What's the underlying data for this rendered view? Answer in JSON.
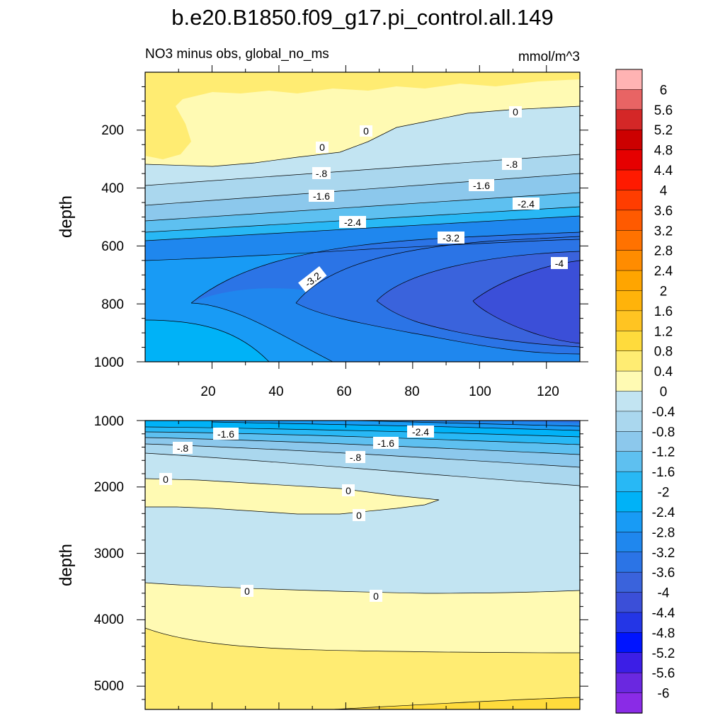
{
  "title": "b.e20.B1850.f09_g17.pi_control.all.149",
  "subtitle_left": "NO3 minus obs, global_no_ms",
  "subtitle_right": "mmol/m^3",
  "chart_data": [
    {
      "type": "contour",
      "panel": "upper",
      "ylabel": "depth",
      "xlim": [
        0,
        130
      ],
      "ylim": [
        1000,
        0
      ],
      "x_ticks": [
        20,
        40,
        60,
        80,
        100,
        120
      ],
      "y_ticks": [
        200,
        400,
        600,
        800,
        1000
      ],
      "contour_labels": [
        "0",
        "0",
        "0",
        "-.8",
        "-.8",
        "-1.6",
        "-1.6",
        "-2.4",
        "-2.4",
        "-3.2",
        "-3.2",
        "-4"
      ]
    },
    {
      "type": "contour",
      "panel": "lower",
      "ylabel": "depth",
      "xlim": [
        0,
        130
      ],
      "ylim": [
        5350,
        1000
      ],
      "y_ticks": [
        1000,
        2000,
        3000,
        4000,
        5000
      ],
      "contour_labels": [
        "-1.6",
        "-2.4",
        "-1.6",
        "-.8",
        "-.8",
        "0",
        "0",
        "0",
        "0",
        "0"
      ]
    }
  ],
  "colorbar": {
    "labels": [
      "6",
      "5.6",
      "5.2",
      "4.8",
      "4.4",
      "4",
      "3.6",
      "3.2",
      "2.8",
      "2.4",
      "2",
      "1.6",
      "1.2",
      "0.8",
      "0.4",
      "0",
      "-0.4",
      "-0.8",
      "-1.2",
      "-1.6",
      "-2",
      "-2.4",
      "-2.8",
      "-3.2",
      "-3.6",
      "-4",
      "-4.4",
      "-4.8",
      "-5.2",
      "-5.6",
      "-6"
    ],
    "colors": [
      "#ffb3b3",
      "#e86464",
      "#d42727",
      "#cc0000",
      "#e60000",
      "#ff1a00",
      "#ff3d00",
      "#ff5a00",
      "#ff7200",
      "#ff8c00",
      "#ffa500",
      "#ffb30a",
      "#ffc422",
      "#ffdb3c",
      "#ffec72",
      "#fffab3",
      "#c2e4f2",
      "#aad7ee",
      "#8cc8ec",
      "#5ec0f0",
      "#28b8f5",
      "#00b2f7",
      "#189bf5",
      "#1f87ee",
      "#2b74e6",
      "#3a63dc",
      "#3b4fd8",
      "#2436e6",
      "#0014ff",
      "#3c1ee6",
      "#6a28e0",
      "#8a2be6"
    ]
  }
}
